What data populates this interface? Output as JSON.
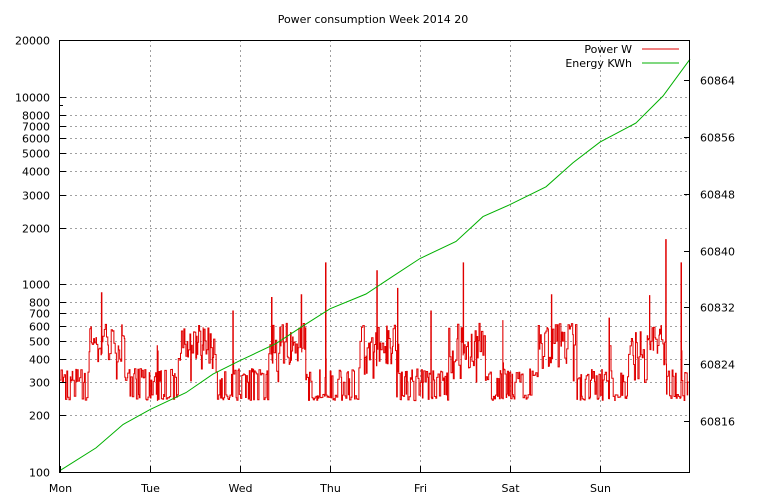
{
  "chart_data": {
    "type": "line",
    "title": "Power consumption Week 2014 20",
    "x": {
      "tick_labels": [
        "Mon",
        "Tue",
        "Wed",
        "Thu",
        "Fri",
        "Sat",
        "Sun"
      ],
      "range_days": [
        0,
        7
      ],
      "grid": true
    },
    "y_left": {
      "scale": "log",
      "range": [
        100,
        20000
      ],
      "ticks": [
        100,
        200,
        300,
        400,
        500,
        600,
        700,
        800,
        1000,
        2000,
        3000,
        4000,
        5000,
        6000,
        7000,
        8000,
        10000,
        20000
      ],
      "tick_labels": [
        "100",
        "200",
        "300",
        "400",
        "500",
        "600",
        "700",
        "800",
        "1000",
        "2000",
        "3000",
        "4000",
        "5000",
        "6000",
        "7000",
        "8000",
        "10000",
        "20000"
      ],
      "grid": true
    },
    "y_right": {
      "scale": "linear",
      "range": [
        60808.8,
        60869.7
      ],
      "ticks": [
        60816,
        60824,
        60832,
        60840,
        60848,
        60856,
        60864
      ],
      "tick_labels": [
        "60816",
        "60824",
        "60832",
        "60840",
        "60848",
        "60856",
        "60864"
      ]
    },
    "legend": {
      "position": "top-right"
    },
    "series": [
      {
        "name": "Power W",
        "color": "#e00000",
        "axis": "left",
        "pattern": "daily: ~240-350 W fluctuating at night, ~380-600 W during daytime with occasional spikes",
        "spikes": [
          {
            "x": 0.46,
            "y": 900
          },
          {
            "x": 1.08,
            "y": 470
          },
          {
            "x": 1.59,
            "y": 590
          },
          {
            "x": 1.92,
            "y": 720
          },
          {
            "x": 2.35,
            "y": 850
          },
          {
            "x": 2.68,
            "y": 880
          },
          {
            "x": 2.95,
            "y": 1300
          },
          {
            "x": 3.52,
            "y": 1180
          },
          {
            "x": 3.75,
            "y": 950
          },
          {
            "x": 4.12,
            "y": 720
          },
          {
            "x": 4.48,
            "y": 1300
          },
          {
            "x": 4.92,
            "y": 640
          },
          {
            "x": 5.46,
            "y": 880
          },
          {
            "x": 6.1,
            "y": 660
          },
          {
            "x": 6.55,
            "y": 870
          },
          {
            "x": 6.73,
            "y": 1730
          },
          {
            "x": 6.9,
            "y": 1300
          }
        ]
      },
      {
        "name": "Energy KWh",
        "color": "#00b000",
        "axis": "right",
        "points": [
          [
            0.0,
            60809.0
          ],
          [
            0.4,
            60812.2
          ],
          [
            0.7,
            60815.5
          ],
          [
            1.0,
            60817.6
          ],
          [
            1.4,
            60820.0
          ],
          [
            1.7,
            60822.6
          ],
          [
            2.0,
            60824.5
          ],
          [
            2.4,
            60826.9
          ],
          [
            2.7,
            60829.4
          ],
          [
            3.0,
            60831.8
          ],
          [
            3.4,
            60833.9
          ],
          [
            3.7,
            60836.4
          ],
          [
            4.0,
            60838.9
          ],
          [
            4.4,
            60841.3
          ],
          [
            4.7,
            60844.8
          ],
          [
            5.0,
            60846.5
          ],
          [
            5.4,
            60849.0
          ],
          [
            5.7,
            60852.4
          ],
          [
            6.0,
            60855.3
          ],
          [
            6.4,
            60858.0
          ],
          [
            6.7,
            60861.8
          ],
          [
            7.0,
            60867.0
          ]
        ]
      }
    ]
  }
}
